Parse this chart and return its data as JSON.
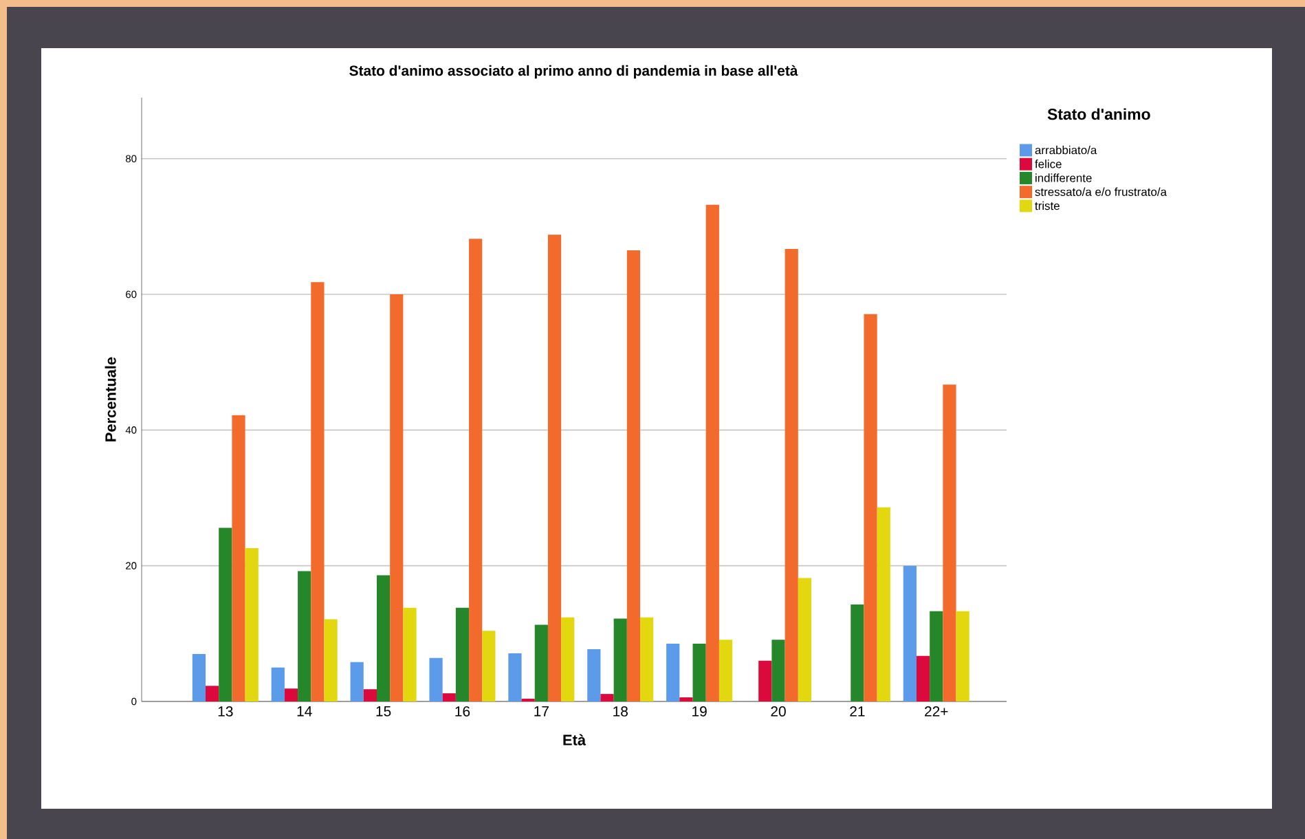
{
  "chart_data": {
    "type": "bar",
    "title": "Stato d'animo associato al primo anno di pandemia in base all'età",
    "xlabel": "Età",
    "ylabel": "Percentuale",
    "legend_title": "Stato d'animo",
    "categories": [
      "13",
      "14",
      "15",
      "16",
      "17",
      "18",
      "19",
      "20",
      "21",
      "22+"
    ],
    "series": [
      {
        "name": "arrabbiato/a",
        "color": "#5b9bea",
        "values": [
          7,
          5,
          5.8,
          6.4,
          7.1,
          7.7,
          8.5,
          null,
          null,
          20
        ]
      },
      {
        "name": "felice",
        "color": "#dc0a3c",
        "values": [
          2.3,
          1.9,
          1.8,
          1.2,
          0.4,
          1.1,
          0.6,
          6,
          null,
          6.7
        ]
      },
      {
        "name": "indifferente",
        "color": "#25862a",
        "values": [
          25.6,
          19.2,
          18.6,
          13.8,
          11.3,
          12.2,
          8.5,
          9.1,
          14.3,
          13.3
        ]
      },
      {
        "name": "stressato/a e/o frustrato/a",
        "color": "#f26a2c",
        "values": [
          42.2,
          61.8,
          60,
          68.2,
          68.8,
          66.5,
          73.2,
          66.7,
          57.1,
          46.7
        ]
      },
      {
        "name": "triste",
        "color": "#e3d70f",
        "values": [
          22.6,
          12.1,
          13.8,
          10.4,
          12.4,
          12.4,
          9.1,
          18.2,
          28.6,
          13.3
        ]
      }
    ],
    "ylim": [
      0,
      89
    ],
    "yticks": [
      0,
      20,
      40,
      60,
      80
    ],
    "grid": "y",
    "legend": "top right"
  }
}
